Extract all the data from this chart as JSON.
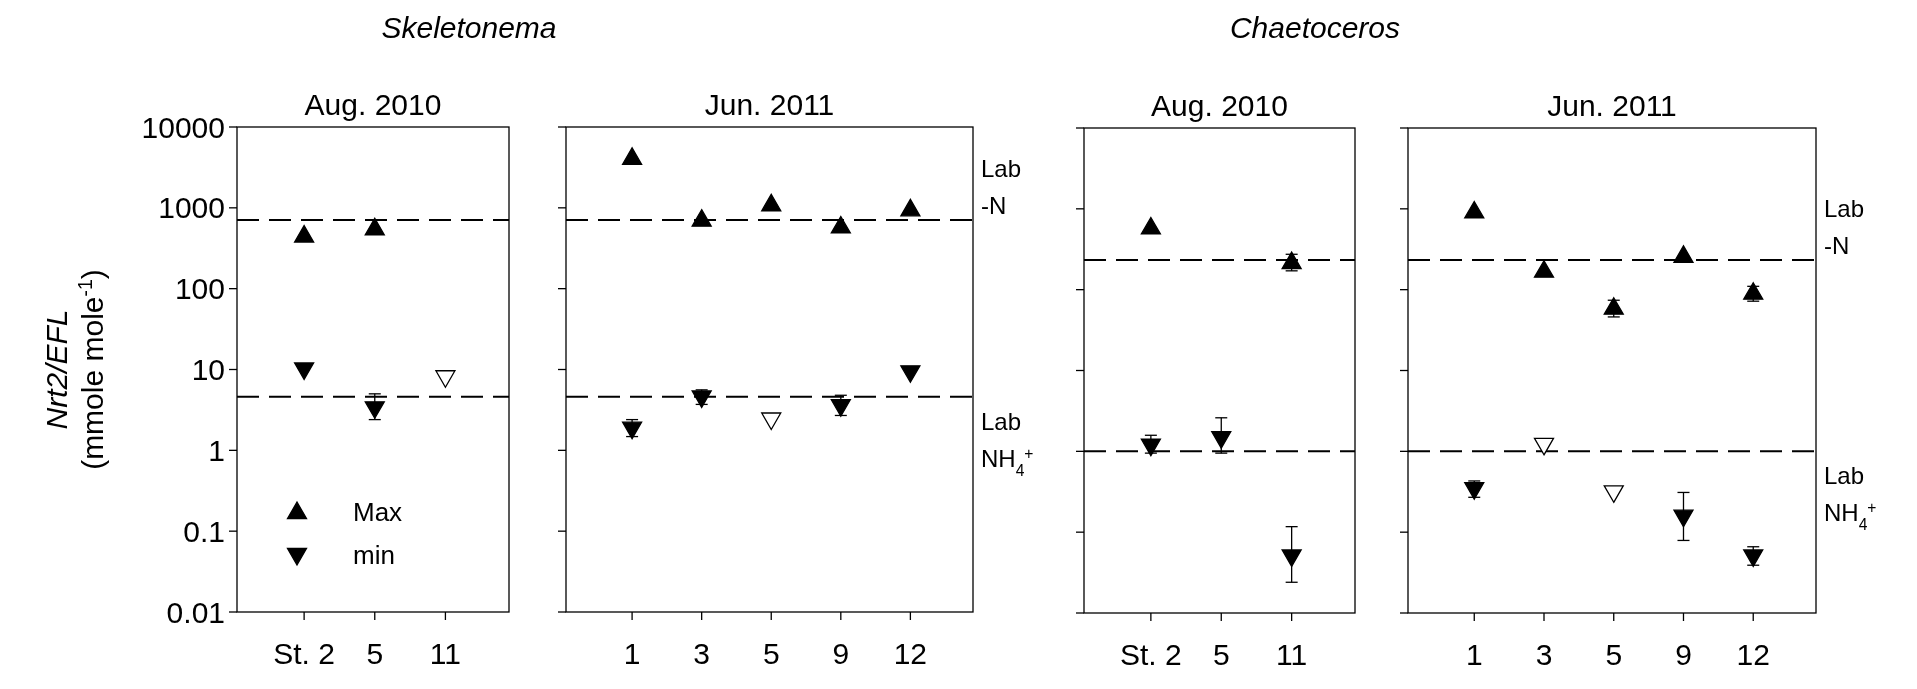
{
  "chart_data": [
    {
      "type": "scatter",
      "title": "Aug. 2010",
      "subtitle": "Skeletonema",
      "ylabel": "Nrt2/EFL\n(mmole mole$^{-1}$)",
      "categories": [
        "St. 2",
        "5",
        "11"
      ],
      "log": true,
      "ylim": [
        0.01,
        10000
      ],
      "yticks": [
        0.01,
        0.1,
        1,
        10,
        100,
        1000,
        10000
      ],
      "legend": "bottom left",
      "series": [
        {
          "name": "Max",
          "color": "#000000",
          "marker": "triangle",
          "values": [
            455,
            560,
            null
          ]
        },
        {
          "name": "min",
          "color": "#000000",
          "marker": "triangle-down",
          "values": [
            10,
            3.3,
            null
          ],
          "errors": [
            null,
            [
              2.4,
              5.0
            ],
            null
          ]
        },
        {
          "color": "#000000",
          "marker": "triangle-down-open",
          "values": [
            null,
            null,
            8
          ]
        }
      ],
      "ref_lines": [
        {
          "axis": "y",
          "value": 705,
          "label": null,
          "line_style": "dashed"
        },
        {
          "axis": "y",
          "value": 4.6,
          "label": null,
          "line_style": "dashed"
        }
      ]
    },
    {
      "type": "scatter",
      "title": "Jun. 2011",
      "categories": [
        "1",
        "3",
        "5",
        "9",
        "12"
      ],
      "log": true,
      "ylim": [
        0.01,
        10000
      ],
      "yticks": [
        0.01,
        0.1,
        1,
        10,
        100,
        1000,
        10000
      ],
      "tick_labels": "x",
      "series": [
        {
          "color": "#000000",
          "marker": "triangle",
          "values": [
            4170,
            716,
            1110,
            590,
            960
          ]
        },
        {
          "color": "#000000",
          "marker": "triangle-down",
          "values": [
            1.85,
            4.5,
            null,
            3.5,
            9.2
          ],
          "errors": [
            [
              1.48,
              2.4
            ],
            [
              3.7,
              5.6
            ],
            null,
            [
              2.7,
              4.8
            ],
            null
          ]
        },
        {
          "color": "#000000",
          "marker": "triangle-down-open",
          "values": [
            null,
            null,
            2.4,
            null,
            null
          ]
        }
      ],
      "ref_lines": [
        {
          "axis": "y",
          "value": 705,
          "label": "Lab\n-N",
          "line_style": "dashed"
        },
        {
          "axis": "y",
          "value": 4.6,
          "label": "Lab\nNH$_{4}$$^{+}$",
          "line_style": "dashed"
        }
      ]
    },
    {
      "type": "scatter",
      "title": "Aug. 2010",
      "subtitle": "Chaetoceros",
      "categories": [
        "St. 2",
        "5",
        "11"
      ],
      "log": true,
      "ylim": [
        0.01,
        10000
      ],
      "yticks": [
        0.01,
        0.1,
        1,
        10,
        100,
        1000,
        10000
      ],
      "tick_labels": "x",
      "series": [
        {
          "color": "#000000",
          "marker": "triangle",
          "values": [
            590,
            null,
            220
          ],
          "errors": [
            null,
            null,
            [
              171,
              274
            ]
          ]
        },
        {
          "color": "#000000",
          "marker": "triangle-down",
          "values": [
            1.17,
            1.45,
            0.05
          ],
          "errors": [
            [
              0.95,
              1.58
            ],
            [
              0.95,
              2.6
            ],
            [
              0.024,
              0.117
            ]
          ]
        }
      ],
      "ref_lines": [
        {
          "axis": "y",
          "value": 232,
          "label": null,
          "line_style": "dashed"
        },
        {
          "axis": "y",
          "value": 1,
          "label": null,
          "line_style": "dashed"
        }
      ]
    },
    {
      "type": "scatter",
      "title": "Jun. 2011",
      "categories": [
        "1",
        "3",
        "5",
        "9",
        "12"
      ],
      "log": true,
      "ylim": [
        0.01,
        10000
      ],
      "yticks": [
        0.01,
        0.1,
        1,
        10,
        100,
        1000,
        10000
      ],
      "tick_labels": "x",
      "series": [
        {
          "color": "#000000",
          "marker": "triangle",
          "values": [
            930,
            172,
            60,
            263,
            92
          ],
          "errors": [
            null,
            null,
            [
              46,
              74
            ],
            null,
            [
              72,
              110
            ]
          ]
        },
        {
          "color": "#000000",
          "marker": "triangle-down",
          "values": [
            0.34,
            null,
            null,
            0.155,
            0.05
          ],
          "errors": [
            [
              0.27,
              0.43
            ],
            null,
            null,
            [
              0.079,
              0.31
            ],
            [
              0.039,
              0.066
            ]
          ]
        },
        {
          "color": "#000000",
          "marker": "triangle-down-open",
          "values": [
            null,
            1.2,
            0.31,
            null,
            null
          ]
        }
      ],
      "ref_lines": [
        {
          "axis": "y",
          "value": 232,
          "label": "Lab\n-N",
          "line_style": "dashed"
        },
        {
          "axis": "y",
          "value": 1,
          "label": "Lab\nNH$_{4}$$^{+}$",
          "line_style": "dashed"
        }
      ]
    }
  ]
}
